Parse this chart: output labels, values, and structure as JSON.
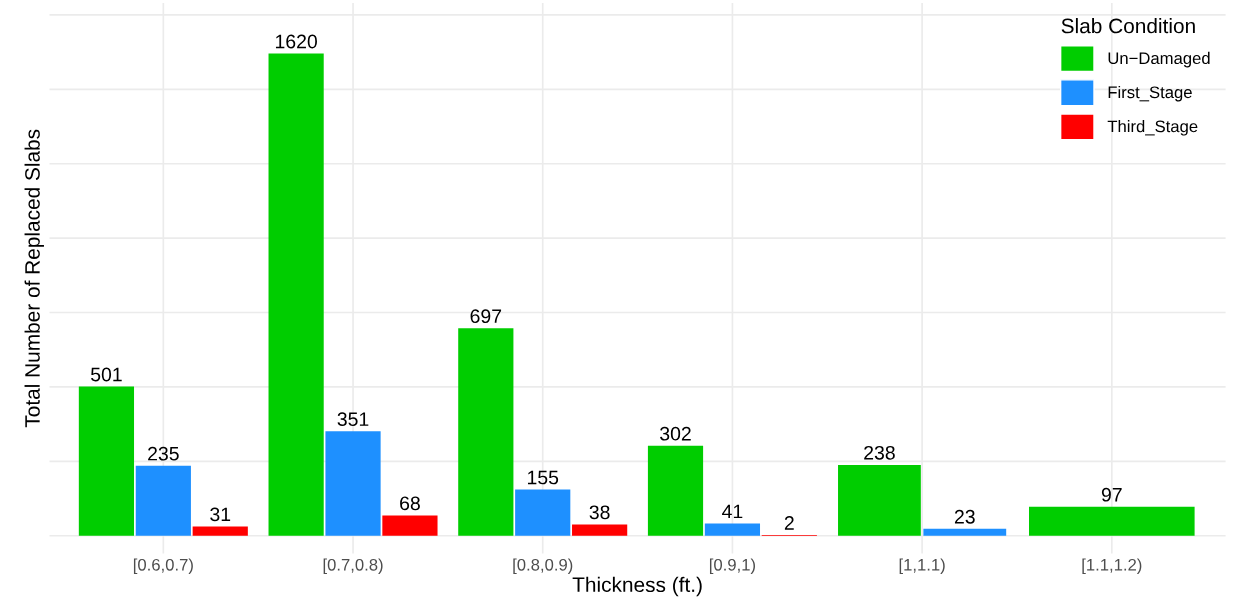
{
  "chart_data": {
    "type": "bar",
    "xlabel": "Thickness (ft.)",
    "ylabel": "Total Number of Replaced Slabs",
    "legend_title": "Slab Condition",
    "categories": [
      "[0.6,0.7)",
      "[0.7,0.8)",
      "[0.8,0.9)",
      "[0.9,1)",
      "[1,1.1)",
      "[1.1,1.2)"
    ],
    "series": [
      {
        "name": "Un−Damaged",
        "color": "#00cd00",
        "values": [
          501,
          1620,
          697,
          302,
          238,
          97
        ]
      },
      {
        "name": "First_Stage",
        "color": "#1e90ff",
        "values": [
          235,
          351,
          155,
          41,
          23,
          null
        ]
      },
      {
        "name": "Third_Stage",
        "color": "#ff0000",
        "values": [
          31,
          68,
          38,
          2,
          null,
          null
        ]
      }
    ],
    "ylim": [
      -60,
      1790
    ],
    "yticks": [
      {
        "value": 0,
        "label": null
      },
      {
        "value": 250,
        "label": null
      },
      {
        "value": 500,
        "label": null
      },
      {
        "value": 750,
        "label": null
      },
      {
        "value": 1000,
        "label": null
      },
      {
        "value": 1250,
        "label": null
      },
      {
        "value": 1500,
        "label": null
      },
      {
        "value": 1750,
        "label": null
      }
    ],
    "tick_labels": "x",
    "grid": true,
    "legend": "top right",
    "data_labels": true
  }
}
